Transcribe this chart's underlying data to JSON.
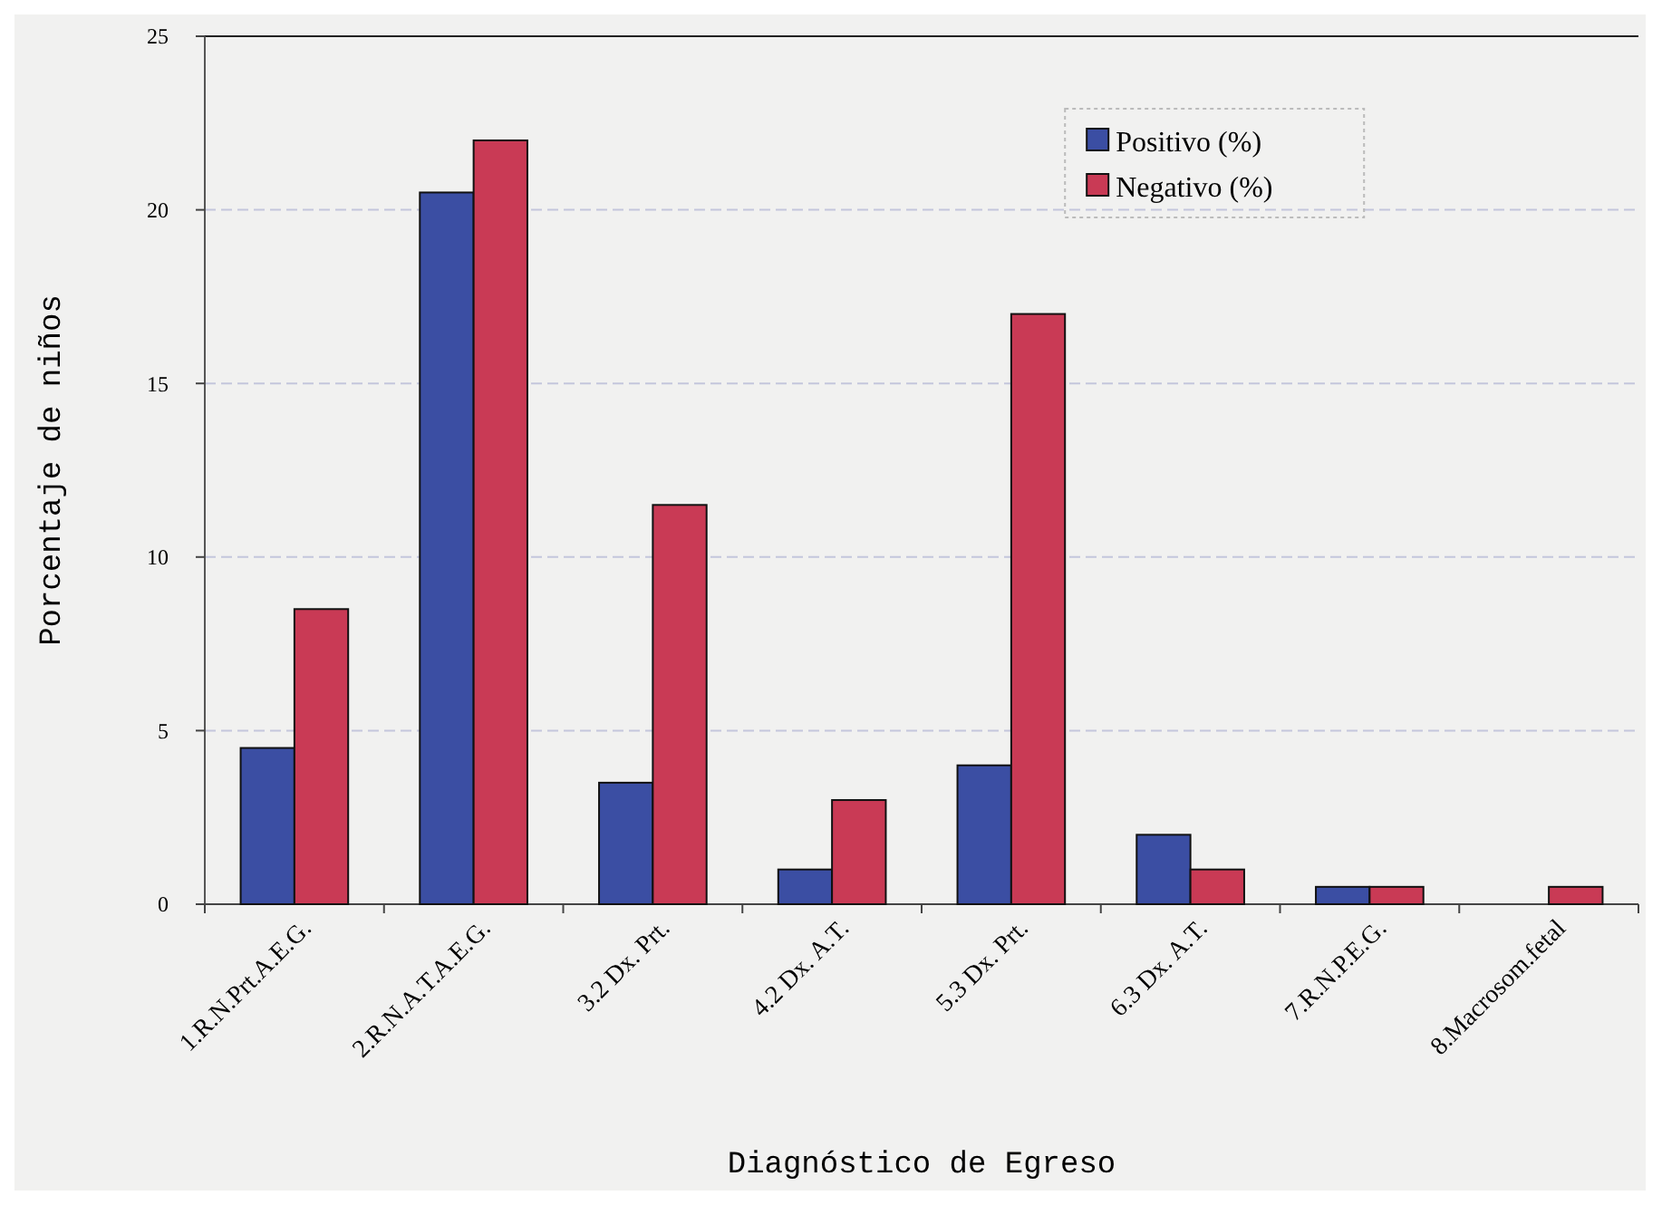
{
  "chart_data": {
    "type": "bar",
    "xlabel": "Diagnóstico de Egreso",
    "ylabel": "Porcentaje de niños",
    "categories": [
      "1.R.N.Prt.A.E.G.",
      "2.R.N.A.T.A.E.G.",
      "3.2 Dx. Prt.",
      "4.2 Dx. A.T.",
      "5.3 Dx. Prt.",
      "6.3 Dx. A.T.",
      "7.R.N.P.E.G.",
      "8.Macrosom.fetal"
    ],
    "series": [
      {
        "name": "Positivo (%)",
        "color": "#3b4ea3",
        "values": [
          4.5,
          20.5,
          3.5,
          1,
          4,
          2,
          0.5,
          null
        ]
      },
      {
        "name": "Negativo (%)",
        "color": "#c93a55",
        "values": [
          8.5,
          22,
          11.5,
          3,
          17,
          1,
          0.5,
          0.5
        ]
      }
    ],
    "ylim": [
      0,
      25
    ],
    "yticks": [
      0,
      5,
      10,
      15,
      20,
      25
    ],
    "grid": "y",
    "legend": "top right"
  }
}
